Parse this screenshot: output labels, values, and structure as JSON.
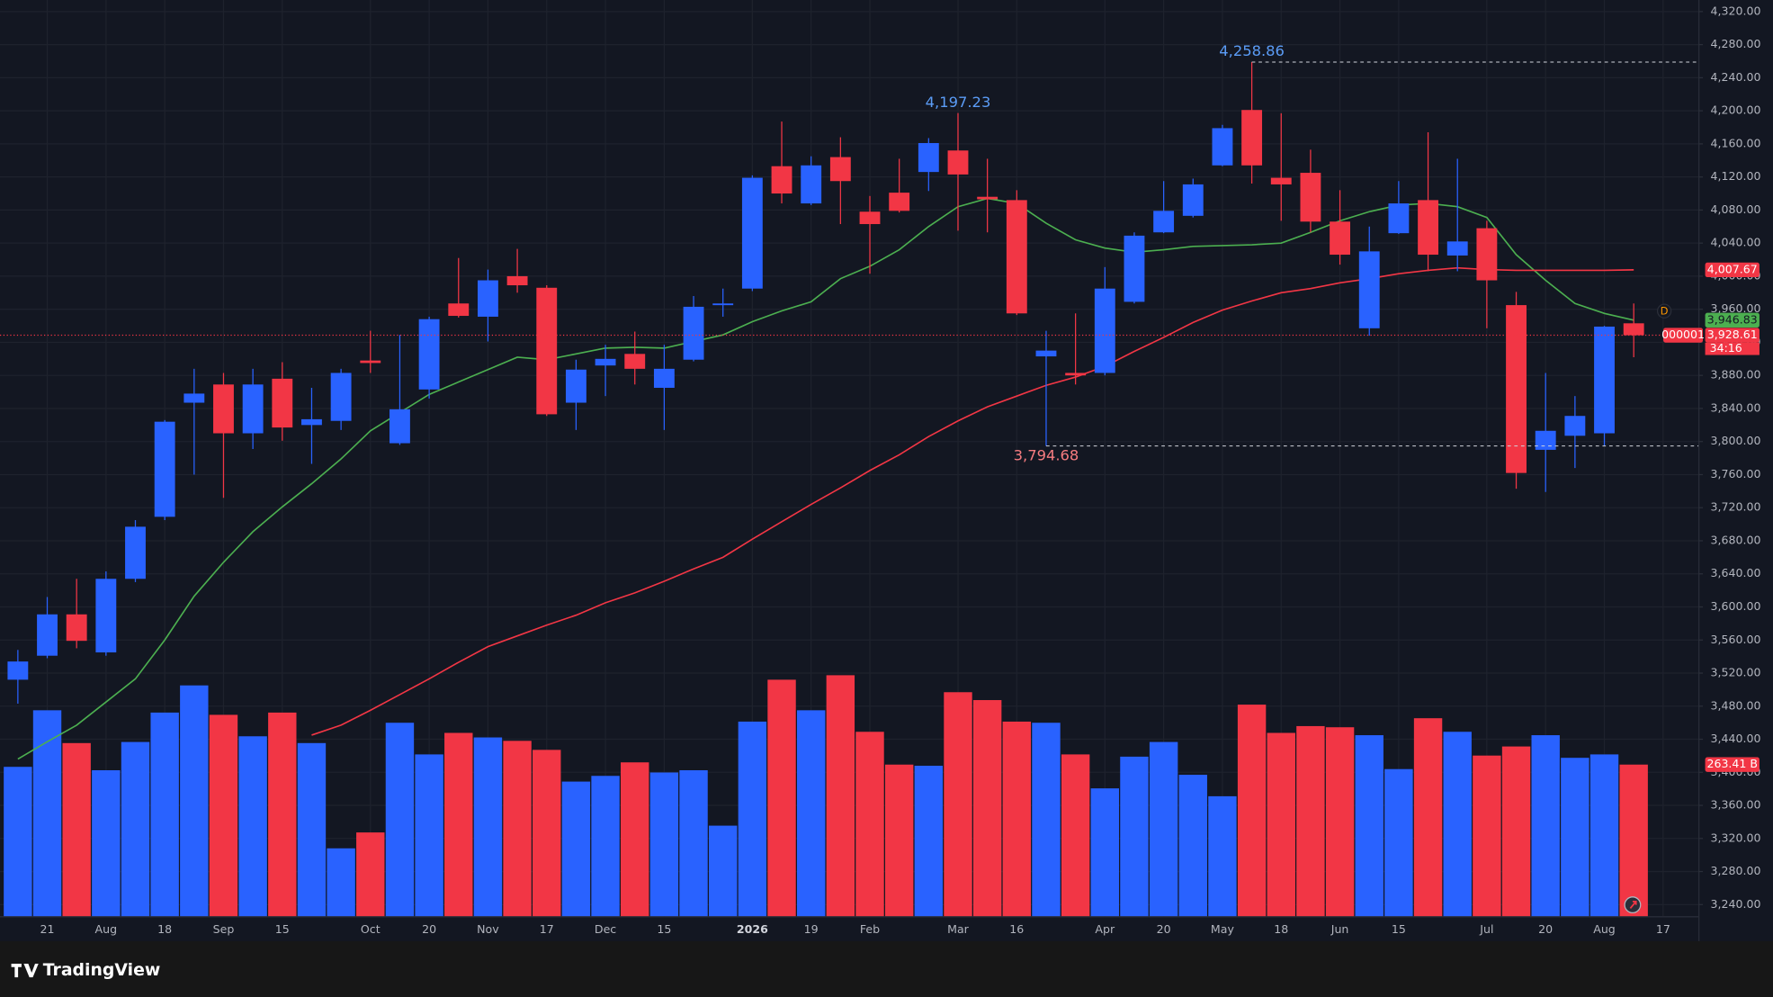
{
  "chart_data": {
    "type": "candlestick",
    "up_color": "#2962ff",
    "down_color": "#f23645",
    "candles": {
      "open": [
        3512,
        3541,
        3591,
        3545,
        3634,
        3709,
        3847,
        3869,
        3810,
        3876,
        3820,
        3825,
        3898,
        3798,
        3863,
        3967,
        3951,
        4000,
        3986,
        3847,
        3892,
        3906,
        3865,
        3899,
        3965,
        3985,
        4133,
        4088,
        4144,
        4078,
        4101,
        4126,
        4152,
        4096,
        4092,
        3903,
        3883,
        3883,
        3969,
        4053,
        4073,
        4134,
        4201,
        4119,
        4125,
        4066,
        3937,
        4052,
        4092,
        4025,
        4058,
        3965,
        3790,
        3807,
        3810,
        3943
      ],
      "high": [
        3548,
        3612,
        3634,
        3643,
        3705,
        3826,
        3888,
        3883,
        3888,
        3896,
        3865,
        3888,
        3934,
        3929,
        3951,
        4022,
        4008,
        4033,
        3989,
        3899,
        3917,
        3933,
        3917,
        3976,
        3985,
        4122,
        4187,
        4145,
        4168,
        4097,
        4142,
        4167,
        4197.23,
        4142,
        4104,
        3934,
        3955,
        4011,
        4053,
        4115,
        4118,
        4183,
        4258.86,
        4197,
        4153,
        4104,
        4060,
        4115,
        4174,
        4142,
        4067,
        3981,
        3883,
        3855,
        3940,
        3967
      ],
      "low": [
        3483,
        3538,
        3550,
        3541,
        3630,
        3705,
        3760,
        3732,
        3791,
        3801,
        3773,
        3814,
        3883,
        3796,
        3852,
        3950,
        3921,
        3980,
        3831,
        3814,
        3855,
        3869,
        3814,
        3897,
        3951,
        3982,
        4088,
        4086,
        4063,
        4003,
        4077,
        4103,
        4055,
        4053,
        3953,
        3794.68,
        3869,
        3880,
        3967,
        4052,
        4071,
        4133,
        4112,
        4067,
        4053,
        4014,
        3928,
        4051,
        4006,
        4006,
        3937,
        3743,
        3739,
        3768,
        3795,
        3902
      ],
      "close": [
        3534,
        3591,
        3559,
        3634,
        3697,
        3824,
        3858,
        3810,
        3869,
        3817,
        3827,
        3883,
        3895,
        3839,
        3948,
        3952,
        3995,
        3989,
        3833,
        3887,
        3900,
        3888,
        3888,
        3963,
        3967,
        4119,
        4100,
        4134,
        4115,
        4063,
        4079,
        4161,
        4123,
        4093,
        3955,
        3910,
        3880,
        3985,
        4049,
        4079,
        4111,
        4179,
        4134,
        4111,
        4066,
        4026,
        4030,
        4088,
        4026,
        4042,
        3995,
        3762,
        3813,
        3831,
        3939,
        3928.61
      ],
      "last_label": "3,928.61",
      "symbol": "000001",
      "countdown": "34:16"
    },
    "volume": {
      "values": [
        259.5,
        357.8,
        300.8,
        253.6,
        302.7,
        353.8,
        401,
        349.9,
        312.6,
        353.8,
        300.8,
        117.9,
        145.5,
        336.1,
        281.1,
        318.5,
        310.6,
        304.7,
        289,
        233.9,
        243.8,
        267.3,
        249.7,
        253.6,
        157.3,
        338.1,
        410.9,
        357.8,
        418.7,
        320.4,
        263.4,
        261.4,
        389.2,
        375.5,
        338.1,
        336.1,
        281.1,
        222.1,
        277.2,
        302.7,
        245.7,
        208.4,
        367.6,
        318.5,
        330.3,
        328.3,
        314.5,
        255.6,
        344,
        320.4,
        279.1,
        294.9,
        314.5,
        275.2,
        281.1,
        263.41
      ],
      "vlim": [
        0,
        1592
      ],
      "last_label": "263.41 B"
    },
    "series": [
      {
        "color": "#4caf50",
        "last_label": "3,946.83",
        "values": [
          3416,
          3437,
          3457,
          3485,
          3513,
          3560,
          3613,
          3654,
          3691,
          3721,
          3749,
          3779,
          3813,
          3835,
          3857,
          3872,
          3887,
          3902,
          3899,
          3906,
          3913,
          3914,
          3913,
          3921,
          3929,
          3945,
          3958,
          3969,
          3997,
          4012,
          4032,
          4060,
          4084,
          4094,
          4088,
          4064,
          4044,
          4034,
          4029,
          4032,
          4036,
          4037,
          4038,
          4040,
          4053,
          4067,
          4078,
          4086,
          4088,
          4084,
          4071,
          4026,
          3995,
          3967,
          3955,
          3946.83
        ]
      },
      {
        "color": "#f23645",
        "last_label": "4,007.67",
        "values": [
          null,
          null,
          null,
          null,
          null,
          null,
          null,
          null,
          null,
          null,
          3445,
          3457,
          3475,
          3494,
          3513,
          3533,
          3552,
          3565,
          3578,
          3590,
          3605,
          3617,
          3631,
          3646,
          3660,
          3682,
          3703,
          3724,
          3744,
          3765,
          3784,
          3806,
          3825,
          3842,
          3855,
          3868,
          3878,
          3891,
          3909,
          3926,
          3944,
          3959,
          3970,
          3980,
          3985,
          3992,
          3997,
          4003,
          4007,
          4010,
          4008,
          4007,
          4007,
          4007,
          4007,
          4007.67
        ]
      }
    ],
    "annotations": [
      {
        "label": "4,197.23",
        "value": 4197.23,
        "index": 32,
        "color": "#5b9cf6",
        "line": false
      },
      {
        "label": "4,258.86",
        "value": 4258.86,
        "index": 42,
        "color": "#5b9cf6",
        "line": true
      },
      {
        "label": "3,794.68",
        "value": 3794.68,
        "index": 35,
        "color": "#f77c80",
        "line": true
      }
    ],
    "xlim": [
      -0.3,
      57.2
    ],
    "xticks": [
      {
        "value": 1,
        "label": "21"
      },
      {
        "value": 3,
        "label": "Aug"
      },
      {
        "value": 5,
        "label": "18"
      },
      {
        "value": 7,
        "label": "Sep"
      },
      {
        "value": 9,
        "label": "15"
      },
      {
        "value": 12,
        "label": "Oct"
      },
      {
        "value": 14,
        "label": "20"
      },
      {
        "value": 16,
        "label": "Nov"
      },
      {
        "value": 18,
        "label": "17"
      },
      {
        "value": 20,
        "label": "Dec"
      },
      {
        "value": 22,
        "label": "15"
      },
      {
        "value": 25,
        "label": "2026"
      },
      {
        "value": 27,
        "label": "19"
      },
      {
        "value": 29,
        "label": "Feb"
      },
      {
        "value": 32,
        "label": "Mar"
      },
      {
        "value": 34,
        "label": "16"
      },
      {
        "value": 37,
        "label": "Apr"
      },
      {
        "value": 39,
        "label": "20"
      },
      {
        "value": 41,
        "label": "May"
      },
      {
        "value": 43,
        "label": "18"
      },
      {
        "value": 45,
        "label": "Jun"
      },
      {
        "value": 47,
        "label": "15"
      },
      {
        "value": 50,
        "label": "Jul"
      },
      {
        "value": 52,
        "label": "20"
      },
      {
        "value": 54,
        "label": "Aug"
      },
      {
        "value": 56,
        "label": "17"
      }
    ],
    "ylim": [
      3226,
      4334
    ],
    "yticks": [
      {
        "value": 3240,
        "label": "3,240.00"
      },
      {
        "value": 3280,
        "label": "3,280.00"
      },
      {
        "value": 3320,
        "label": "3,320.00"
      },
      {
        "value": 3360,
        "label": "3,360.00"
      },
      {
        "value": 3400,
        "label": "3,400.00"
      },
      {
        "value": 3440,
        "label": "3,440.00"
      },
      {
        "value": 3480,
        "label": "3,480.00"
      },
      {
        "value": 3520,
        "label": "3,520.00"
      },
      {
        "value": 3560,
        "label": "3,560.00"
      },
      {
        "value": 3600,
        "label": "3,600.00"
      },
      {
        "value": 3640,
        "label": "3,640.00"
      },
      {
        "value": 3680,
        "label": "3,680.00"
      },
      {
        "value": 3720,
        "label": "3,720.00"
      },
      {
        "value": 3760,
        "label": "3,760.00"
      },
      {
        "value": 3800,
        "label": "3,800.00"
      },
      {
        "value": 3840,
        "label": "3,840.00"
      },
      {
        "value": 3880,
        "label": "3,880.00"
      },
      {
        "value": 3920,
        "label": "3,920.00"
      },
      {
        "value": 3960,
        "label": "3,960.00"
      },
      {
        "value": 4000,
        "label": "4,000.00"
      },
      {
        "value": 4040,
        "label": "4,040.00"
      },
      {
        "value": 4080,
        "label": "4,080.00"
      },
      {
        "value": 4120,
        "label": "4,120.00"
      },
      {
        "value": 4160,
        "label": "4,160.00"
      },
      {
        "value": 4200,
        "label": "4,200.00"
      },
      {
        "value": 4240,
        "label": "4,240.00"
      },
      {
        "value": 4280,
        "label": "4,280.00"
      },
      {
        "value": 4320,
        "label": "4,320.00"
      }
    ],
    "grid": true,
    "period": "D",
    "brand": "TradingView"
  }
}
